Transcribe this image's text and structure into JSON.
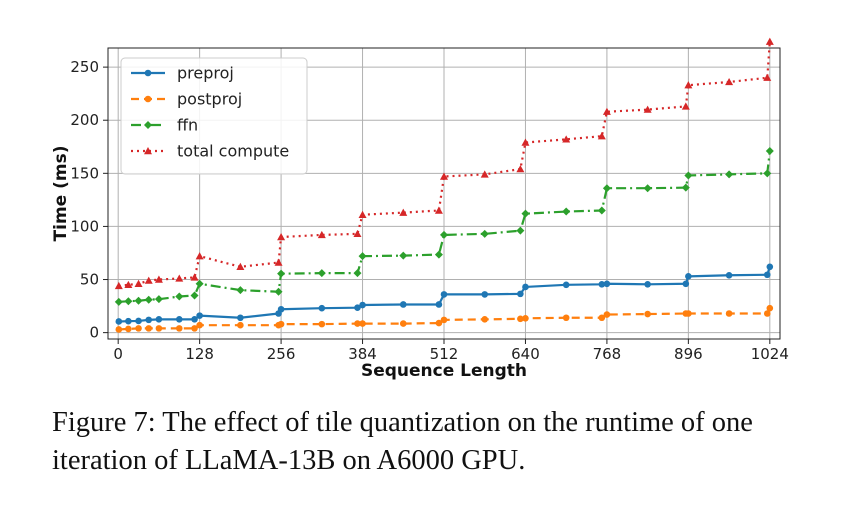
{
  "chart_data": {
    "type": "line",
    "title": "",
    "xlabel": "Sequence Length",
    "ylabel": "Time (ms)",
    "xlim": [
      -16,
      1040
    ],
    "ylim": [
      -6,
      268
    ],
    "xticks": [
      0,
      128,
      256,
      384,
      512,
      640,
      768,
      896,
      1024
    ],
    "xtick_labels": [
      "0",
      "128",
      "256",
      "384",
      "512",
      "640",
      "768",
      "896",
      "1024"
    ],
    "yticks": [
      0,
      50,
      100,
      150,
      200,
      250
    ],
    "ytick_labels": [
      "0",
      "50",
      "100",
      "150",
      "200",
      "250"
    ],
    "grid": true,
    "legend_position": "top-left",
    "series": [
      {
        "name": "preproj",
        "color": "#1f77b4",
        "dash": "",
        "marker": "circle",
        "x": [
          1,
          16,
          32,
          48,
          64,
          96,
          120,
          128,
          192,
          252,
          256,
          320,
          376,
          384,
          448,
          504,
          512,
          576,
          632,
          640,
          704,
          760,
          768,
          832,
          892,
          896,
          960,
          1020,
          1024
        ],
        "y": [
          10.5,
          10.8,
          11,
          12,
          12.5,
          12.5,
          12.5,
          16,
          14,
          18,
          22,
          23,
          23.5,
          26,
          26.5,
          26.5,
          36,
          36,
          36.5,
          43,
          45,
          45.5,
          46,
          45.5,
          46,
          53,
          54,
          54.5,
          62
        ]
      },
      {
        "name": "postproj",
        "color": "#ff7f0e",
        "dash": "8,5",
        "marker": "circle",
        "x": [
          1,
          16,
          32,
          48,
          64,
          96,
          120,
          128,
          192,
          252,
          256,
          320,
          376,
          384,
          448,
          504,
          512,
          576,
          632,
          640,
          704,
          760,
          768,
          832,
          892,
          896,
          960,
          1020,
          1024
        ],
        "y": [
          3,
          3.5,
          4,
          4,
          4,
          4,
          4,
          7,
          7,
          7,
          8,
          8,
          8.5,
          8.5,
          8.5,
          9,
          12,
          12.5,
          13,
          13.5,
          14,
          14,
          17,
          17.5,
          18,
          18,
          18,
          18,
          23
        ]
      },
      {
        "name": "ffn",
        "color": "#2ca02c",
        "dash": "10,4,2,4",
        "marker": "diamond",
        "x": [
          1,
          16,
          32,
          48,
          64,
          96,
          120,
          128,
          192,
          252,
          256,
          320,
          376,
          384,
          448,
          504,
          512,
          576,
          632,
          640,
          704,
          760,
          768,
          832,
          892,
          896,
          960,
          1020,
          1024
        ],
        "y": [
          29,
          29.5,
          30,
          31,
          31.5,
          34,
          35,
          46,
          40,
          38.5,
          55.5,
          56,
          56,
          72,
          72.5,
          73.5,
          92,
          93,
          96,
          112,
          114,
          115,
          136,
          136,
          136.5,
          148,
          149,
          150,
          171
        ]
      },
      {
        "name": "total compute",
        "color": "#d62728",
        "dash": "2,4",
        "marker": "triangle",
        "x": [
          1,
          16,
          32,
          48,
          64,
          96,
          120,
          128,
          192,
          252,
          256,
          320,
          376,
          384,
          448,
          504,
          512,
          576,
          632,
          640,
          704,
          760,
          768,
          832,
          892,
          896,
          960,
          1020,
          1024
        ],
        "y": [
          44,
          45,
          46,
          49,
          50,
          51,
          52,
          72,
          62,
          66,
          90,
          92,
          93,
          111,
          113,
          115,
          147,
          149,
          154,
          179,
          182,
          185,
          208,
          210,
          213,
          233,
          236,
          240,
          274
        ]
      }
    ]
  },
  "caption": "Figure 7: The effect of tile quantization on the runtime of one iteration of LLaMA-13B on A6000 GPU."
}
